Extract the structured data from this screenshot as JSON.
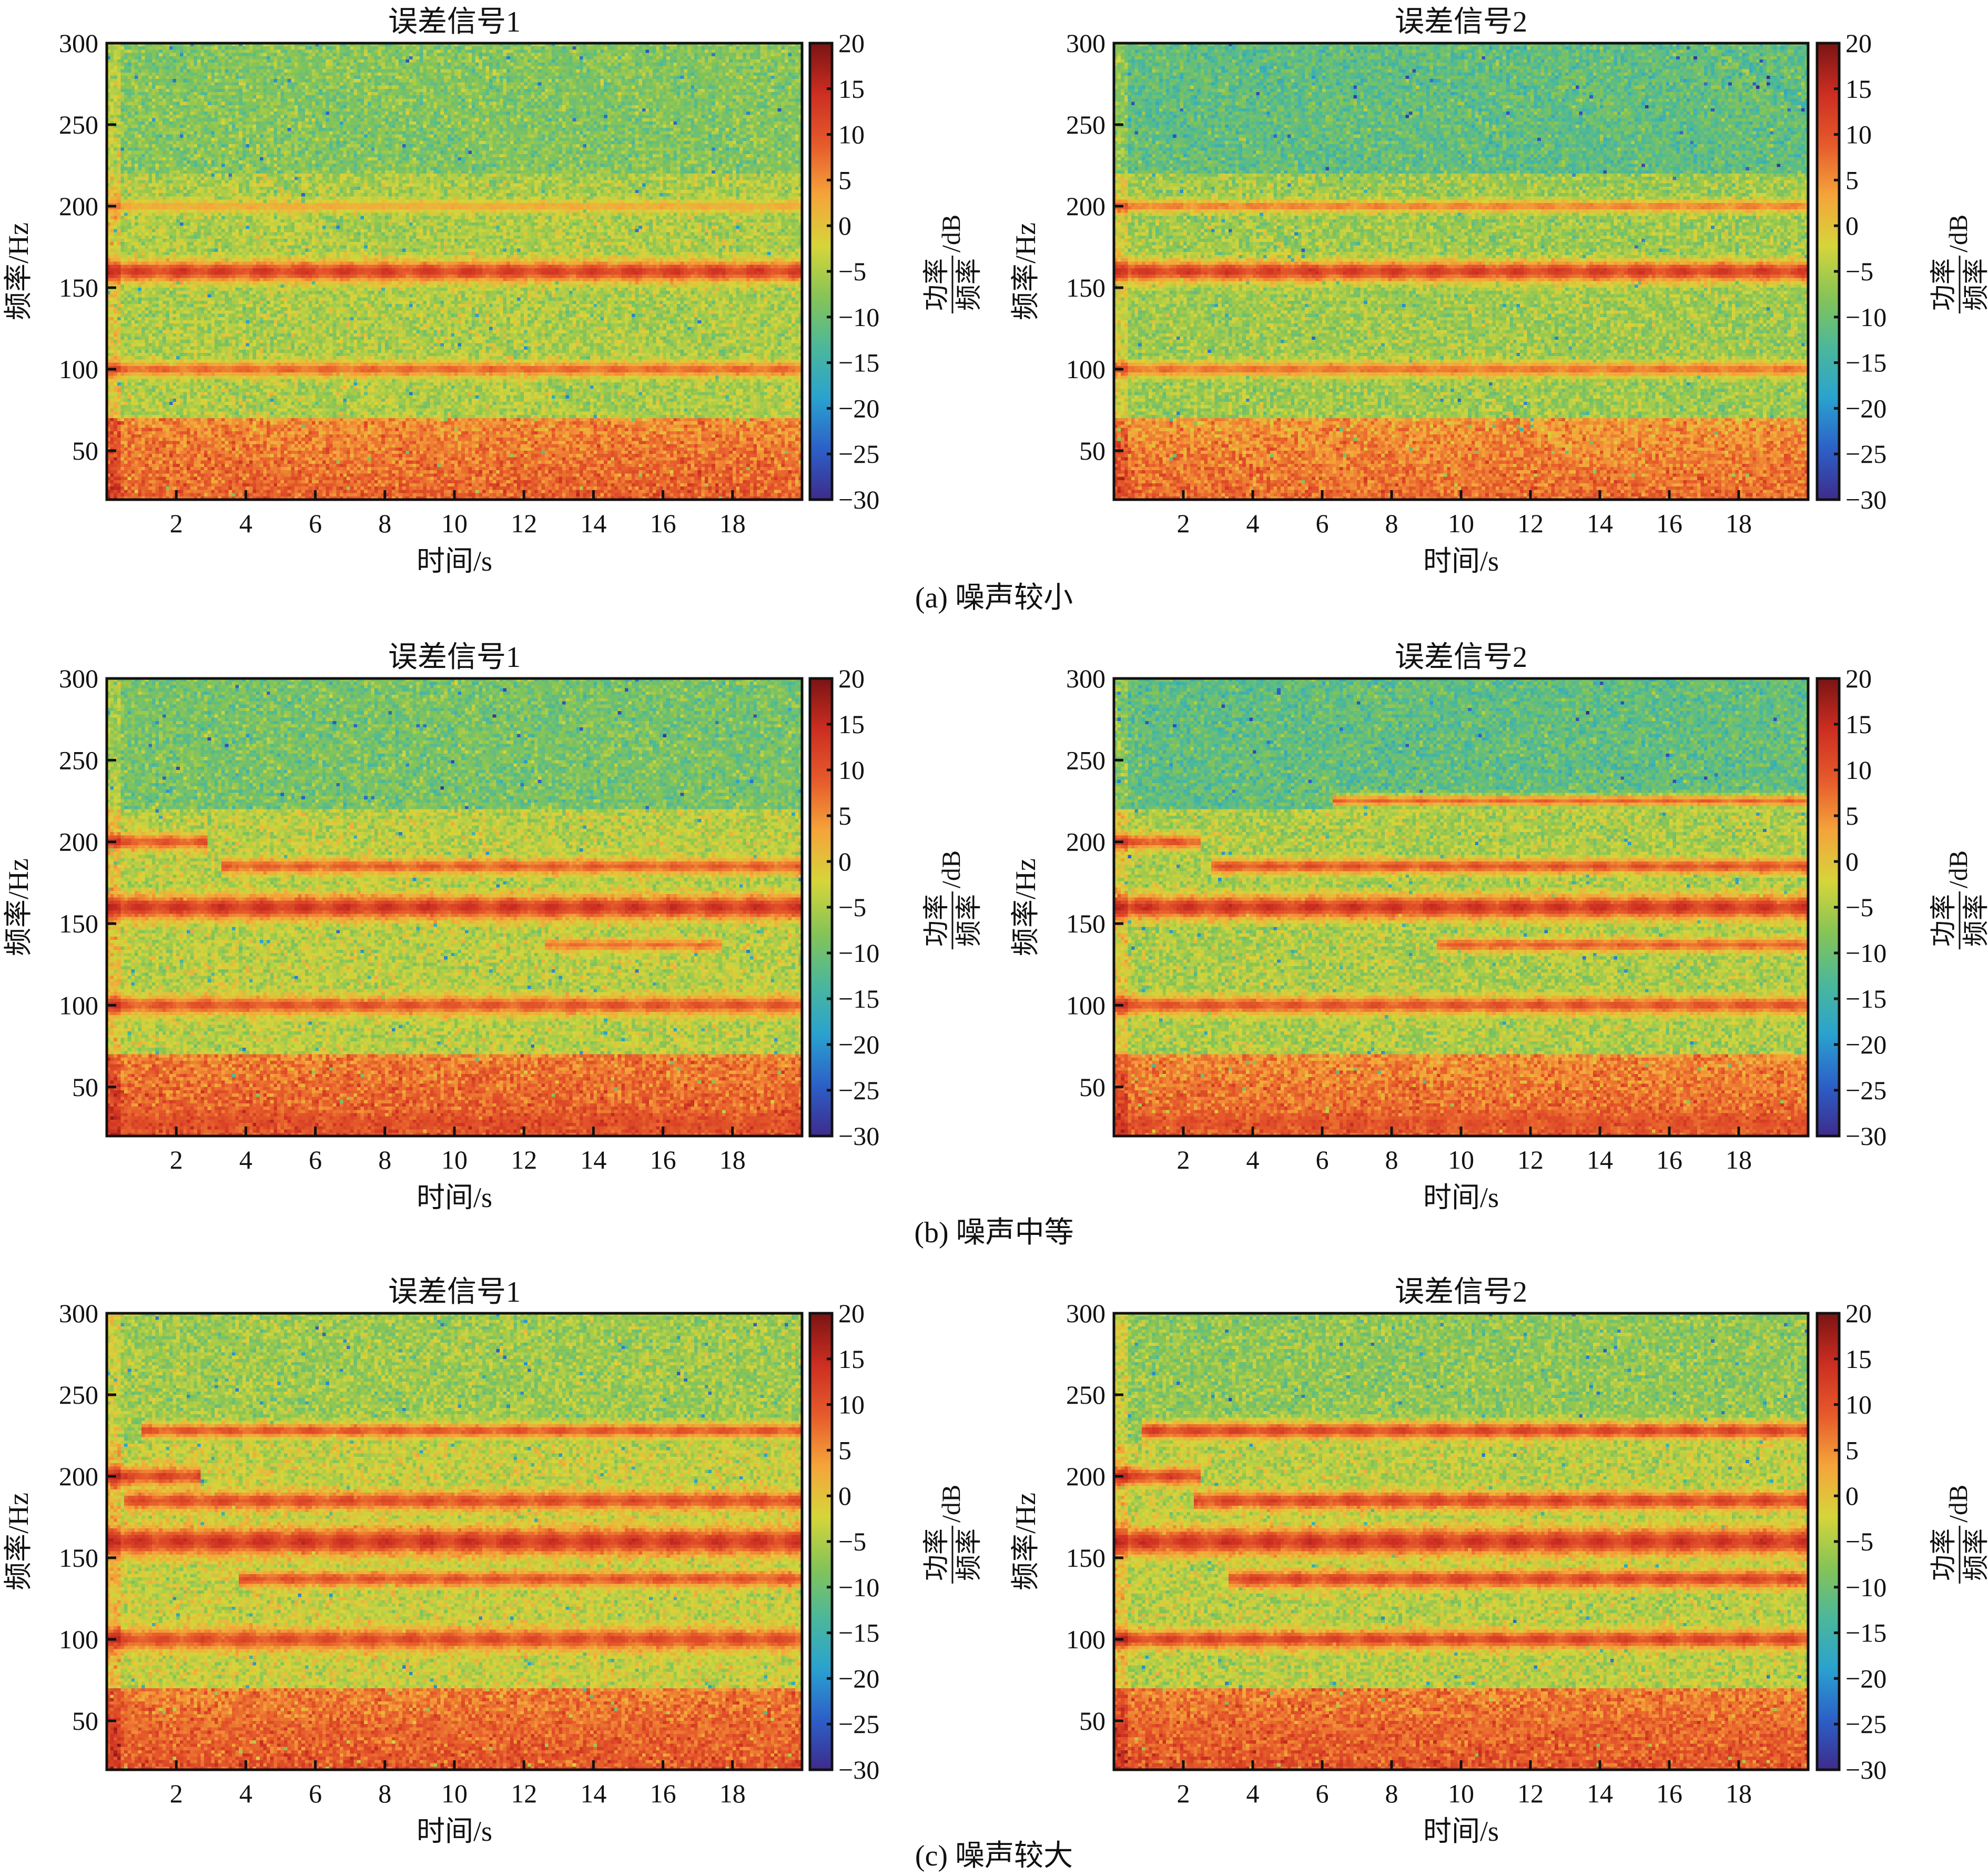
{
  "colors": {
    "colormap": [
      "#3e2b8c",
      "#2c60c8",
      "#2aa2cf",
      "#4bb89a",
      "#86c456",
      "#d6d53a",
      "#f5a43a",
      "#e65a2b",
      "#cc2e21",
      "#7a1414"
    ],
    "background": "#ffffff",
    "text": "#111111"
  },
  "chart_data": [
    {
      "type": "heatmap",
      "panel": "a",
      "title": "误差信号1",
      "xlabel": "时间/s",
      "ylabel": "频率/Hz",
      "xlim": [
        0,
        20
      ],
      "ylim": [
        20,
        300
      ],
      "xticks": [
        "2",
        "4",
        "6",
        "8",
        "10",
        "12",
        "14",
        "16",
        "18"
      ],
      "yticks": [
        "50",
        "100",
        "150",
        "200",
        "250",
        "300"
      ],
      "colorbar": {
        "label_main": "/dB",
        "label_fraction_numerator": "功率",
        "label_fraction_denominator": "频率",
        "range": [
          -30,
          20
        ],
        "ticks": [
          "20",
          "15",
          "10",
          "5",
          "0",
          "−5",
          "−10",
          "−15",
          "−20",
          "−25",
          "−30"
        ]
      },
      "background_db": {
        "low_freq": 5,
        "mid": -5,
        "high_freq": -8
      },
      "bands": [
        {
          "freq_hz": 160,
          "width_hz": 14,
          "level_db": 14,
          "t_start": 0,
          "t_end": 20
        },
        {
          "freq_hz": 100,
          "width_hz": 10,
          "level_db": 9,
          "t_start": 0,
          "t_end": 20
        },
        {
          "freq_hz": 200,
          "width_hz": 8,
          "level_db": 3,
          "t_start": 0,
          "t_end": 20
        }
      ]
    },
    {
      "type": "heatmap",
      "panel": "a",
      "title": "误差信号2",
      "xlabel": "时间/s",
      "ylabel": "频率/Hz",
      "xlim": [
        0,
        20
      ],
      "ylim": [
        20,
        300
      ],
      "xticks": [
        "2",
        "4",
        "6",
        "8",
        "10",
        "12",
        "14",
        "16",
        "18"
      ],
      "yticks": [
        "50",
        "100",
        "150",
        "200",
        "250",
        "300"
      ],
      "colorbar": {
        "label_main": "/dB",
        "label_fraction_numerator": "功率",
        "label_fraction_denominator": "频率",
        "range": [
          -30,
          20
        ],
        "ticks": [
          "20",
          "15",
          "10",
          "5",
          "0",
          "−5",
          "−10",
          "−15",
          "−20",
          "−25",
          "−30"
        ]
      },
      "background_db": {
        "low_freq": 4,
        "mid": -6,
        "high_freq": -11
      },
      "bands": [
        {
          "freq_hz": 160,
          "width_hz": 14,
          "level_db": 14,
          "t_start": 0,
          "t_end": 20
        },
        {
          "freq_hz": 100,
          "width_hz": 10,
          "level_db": 8,
          "t_start": 0,
          "t_end": 20
        },
        {
          "freq_hz": 200,
          "width_hz": 8,
          "level_db": 7,
          "t_start": 0,
          "t_end": 20
        }
      ]
    },
    {
      "type": "heatmap",
      "panel": "b",
      "title": "误差信号1",
      "xlabel": "时间/s",
      "ylabel": "频率/Hz",
      "xlim": [
        0,
        20
      ],
      "ylim": [
        20,
        300
      ],
      "xticks": [
        "2",
        "4",
        "6",
        "8",
        "10",
        "12",
        "14",
        "16",
        "18"
      ],
      "yticks": [
        "50",
        "100",
        "150",
        "200",
        "250",
        "300"
      ],
      "colorbar": {
        "label_main": "/dB",
        "label_fraction_numerator": "功率",
        "label_fraction_denominator": "频率",
        "range": [
          -30,
          20
        ],
        "ticks": [
          "20",
          "15",
          "10",
          "5",
          "0",
          "−5",
          "−10",
          "−15",
          "−20",
          "−25",
          "−30"
        ]
      },
      "background_db": {
        "low_freq": 6,
        "mid": -4,
        "high_freq": -9
      },
      "bands": [
        {
          "freq_hz": 160,
          "width_hz": 16,
          "level_db": 15,
          "t_start": 0,
          "t_end": 20
        },
        {
          "freq_hz": 100,
          "width_hz": 12,
          "level_db": 11,
          "t_start": 0,
          "t_end": 20
        },
        {
          "freq_hz": 200,
          "width_hz": 10,
          "level_db": 11,
          "t_start": 0,
          "t_end": 2.7
        },
        {
          "freq_hz": 185,
          "width_hz": 10,
          "level_db": 10,
          "t_start": 3.5,
          "t_end": 20
        },
        {
          "freq_hz": 137,
          "width_hz": 8,
          "level_db": 8,
          "t_start": 12.8,
          "t_end": 17.5
        },
        {
          "freq_hz": 28,
          "width_hz": 12,
          "level_db": 11,
          "t_start": 0,
          "t_end": 20
        }
      ]
    },
    {
      "type": "heatmap",
      "panel": "b",
      "title": "误差信号2",
      "xlabel": "时间/s",
      "ylabel": "频率/Hz",
      "xlim": [
        0,
        20
      ],
      "ylim": [
        20,
        300
      ],
      "xticks": [
        "2",
        "4",
        "6",
        "8",
        "10",
        "12",
        "14",
        "16",
        "18"
      ],
      "yticks": [
        "50",
        "100",
        "150",
        "200",
        "250",
        "300"
      ],
      "colorbar": {
        "label_main": "/dB",
        "label_fraction_numerator": "功率",
        "label_fraction_denominator": "频率",
        "range": [
          -30,
          20
        ],
        "ticks": [
          "20",
          "15",
          "10",
          "5",
          "0",
          "−5",
          "−10",
          "−15",
          "−20",
          "−25",
          "−30"
        ]
      },
      "background_db": {
        "low_freq": 5,
        "mid": -5,
        "high_freq": -11
      },
      "bands": [
        {
          "freq_hz": 160,
          "width_hz": 16,
          "level_db": 15,
          "t_start": 0,
          "t_end": 20
        },
        {
          "freq_hz": 100,
          "width_hz": 12,
          "level_db": 11,
          "t_start": 0,
          "t_end": 20
        },
        {
          "freq_hz": 200,
          "width_hz": 10,
          "level_db": 11,
          "t_start": 0,
          "t_end": 2.3
        },
        {
          "freq_hz": 185,
          "width_hz": 10,
          "level_db": 11,
          "t_start": 3.0,
          "t_end": 20
        },
        {
          "freq_hz": 137,
          "width_hz": 9,
          "level_db": 10,
          "t_start": 9.5,
          "t_end": 20
        },
        {
          "freq_hz": 225,
          "width_hz": 8,
          "level_db": 9,
          "t_start": 6.5,
          "t_end": 20
        },
        {
          "freq_hz": 28,
          "width_hz": 12,
          "level_db": 11,
          "t_start": 0,
          "t_end": 20
        }
      ]
    },
    {
      "type": "heatmap",
      "panel": "c",
      "title": "误差信号1",
      "xlabel": "时间/s",
      "ylabel": "频率/Hz",
      "xlim": [
        0,
        20
      ],
      "ylim": [
        20,
        300
      ],
      "xticks": [
        "2",
        "4",
        "6",
        "8",
        "10",
        "12",
        "14",
        "16",
        "18"
      ],
      "yticks": [
        "50",
        "100",
        "150",
        "200",
        "250",
        "300"
      ],
      "colorbar": {
        "label_main": "/dB",
        "label_fraction_numerator": "功率",
        "label_fraction_denominator": "频率",
        "range": [
          -30,
          20
        ],
        "ticks": [
          "20",
          "15",
          "10",
          "5",
          "0",
          "−5",
          "−10",
          "−15",
          "−20",
          "−25",
          "−30"
        ]
      },
      "background_db": {
        "low_freq": 6,
        "mid": -3,
        "high_freq": -6
      },
      "bands": [
        {
          "freq_hz": 160,
          "width_hz": 18,
          "level_db": 15,
          "t_start": 0,
          "t_end": 20
        },
        {
          "freq_hz": 100,
          "width_hz": 14,
          "level_db": 12,
          "t_start": 0,
          "t_end": 20
        },
        {
          "freq_hz": 200,
          "width_hz": 12,
          "level_db": 13,
          "t_start": 0,
          "t_end": 2.5
        },
        {
          "freq_hz": 185,
          "width_hz": 12,
          "level_db": 12,
          "t_start": 0.7,
          "t_end": 20
        },
        {
          "freq_hz": 228,
          "width_hz": 10,
          "level_db": 11,
          "t_start": 1.2,
          "t_end": 20
        },
        {
          "freq_hz": 137,
          "width_hz": 10,
          "level_db": 11,
          "t_start": 4.0,
          "t_end": 20
        },
        {
          "freq_hz": 45,
          "width_hz": 12,
          "level_db": 7,
          "t_start": 0,
          "t_end": 20
        }
      ]
    },
    {
      "type": "heatmap",
      "panel": "c",
      "title": "误差信号2",
      "xlabel": "时间/s",
      "ylabel": "频率/Hz",
      "xlim": [
        0,
        20
      ],
      "ylim": [
        20,
        300
      ],
      "xticks": [
        "2",
        "4",
        "6",
        "8",
        "10",
        "12",
        "14",
        "16",
        "18"
      ],
      "yticks": [
        "50",
        "100",
        "150",
        "200",
        "250",
        "300"
      ],
      "colorbar": {
        "label_main": "/dB",
        "label_fraction_numerator": "功率",
        "label_fraction_denominator": "频率",
        "range": [
          -30,
          20
        ],
        "ticks": [
          "20",
          "15",
          "10",
          "5",
          "0",
          "−5",
          "−10",
          "−15",
          "−20",
          "−25",
          "−30"
        ]
      },
      "background_db": {
        "low_freq": 6,
        "mid": -4,
        "high_freq": -7
      },
      "bands": [
        {
          "freq_hz": 160,
          "width_hz": 18,
          "level_db": 15,
          "t_start": 0,
          "t_end": 20
        },
        {
          "freq_hz": 100,
          "width_hz": 12,
          "level_db": 13,
          "t_start": 0,
          "t_end": 20
        },
        {
          "freq_hz": 200,
          "width_hz": 12,
          "level_db": 13,
          "t_start": 0,
          "t_end": 2.3
        },
        {
          "freq_hz": 185,
          "width_hz": 12,
          "level_db": 13,
          "t_start": 2.5,
          "t_end": 20
        },
        {
          "freq_hz": 228,
          "width_hz": 12,
          "level_db": 13,
          "t_start": 1.0,
          "t_end": 20
        },
        {
          "freq_hz": 137,
          "width_hz": 12,
          "level_db": 13,
          "t_start": 3.5,
          "t_end": 20
        },
        {
          "freq_hz": 45,
          "width_hz": 12,
          "level_db": 7,
          "t_start": 0,
          "t_end": 20
        }
      ]
    }
  ],
  "captions": {
    "a": "(a) 噪声较小",
    "b": "(b) 噪声中等",
    "c": "(c) 噪声较大"
  }
}
